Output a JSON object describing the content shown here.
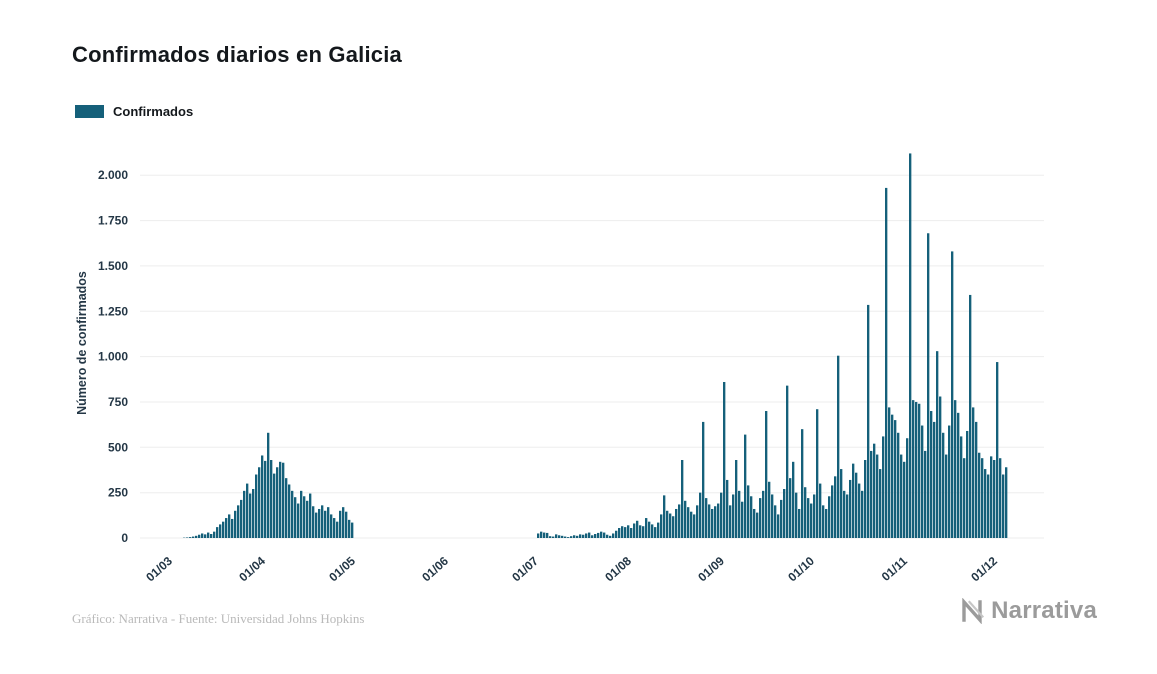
{
  "header": {
    "title": "Confirmados diarios en Galicia"
  },
  "legend": {
    "items": [
      {
        "label": "Confirmados",
        "color": "#15607a"
      }
    ]
  },
  "footer": {
    "credit": "Gráfico: Narrativa - Fuente: Universidad Johns Hopkins",
    "logo_text": "Narrativa"
  },
  "chart_data": {
    "type": "bar",
    "title": "Confirmados diarios en Galicia",
    "xlabel": "",
    "ylabel": "Número de confirmados",
    "series_name": "Confirmados",
    "bar_color": "#15607a",
    "grid": true,
    "legend_position": "top-left",
    "frequency": "daily",
    "x_start_date": "01/03/2020",
    "x_end_date": "05/12/2020",
    "ylim": [
      0,
      2150
    ],
    "y_ticks": [
      {
        "value": 0,
        "label": "0"
      },
      {
        "value": 250,
        "label": "250"
      },
      {
        "value": 500,
        "label": "500"
      },
      {
        "value": 750,
        "label": "750"
      },
      {
        "value": 1000,
        "label": "1.000"
      },
      {
        "value": 1250,
        "label": "1.250"
      },
      {
        "value": 1500,
        "label": "1.500"
      },
      {
        "value": 1750,
        "label": "1.750"
      },
      {
        "value": 2000,
        "label": "2.000"
      }
    ],
    "x_ticks": [
      {
        "index": 0,
        "label": "01/03"
      },
      {
        "index": 31,
        "label": "01/04"
      },
      {
        "index": 61,
        "label": "01/05"
      },
      {
        "index": 92,
        "label": "01/06"
      },
      {
        "index": 122,
        "label": "01/07"
      },
      {
        "index": 153,
        "label": "01/08"
      },
      {
        "index": 184,
        "label": "01/09"
      },
      {
        "index": 214,
        "label": "01/10"
      },
      {
        "index": 245,
        "label": "01/11"
      },
      {
        "index": 275,
        "label": "01/12"
      }
    ],
    "months": [
      {
        "month": "03/2020",
        "values": [
          0,
          0,
          0,
          0,
          0,
          2,
          3,
          5,
          8,
          12,
          18,
          25,
          20,
          30,
          22,
          35,
          60,
          75,
          90,
          110,
          130,
          105,
          150,
          180,
          210,
          260,
          300,
          245,
          270,
          350,
          390
        ]
      },
      {
        "month": "04/2020",
        "values": [
          455,
          425,
          580,
          430,
          355,
          390,
          420,
          415,
          330,
          295,
          260,
          225,
          190,
          260,
          230,
          205,
          245,
          175,
          140,
          160,
          180,
          150,
          170,
          130,
          110,
          90,
          150,
          170,
          145,
          100
        ]
      },
      {
        "month": "05/2020",
        "values": [
          85,
          0,
          0,
          0,
          0,
          0,
          0,
          0,
          0,
          0,
          0,
          0,
          0,
          0,
          0,
          0,
          0,
          0,
          0,
          0,
          0,
          0,
          0,
          0,
          0,
          0,
          0,
          0,
          0,
          0,
          0
        ]
      },
      {
        "month": "06/2020",
        "values": [
          0,
          0,
          0,
          0,
          0,
          0,
          0,
          0,
          0,
          0,
          0,
          0,
          0,
          0,
          0,
          0,
          0,
          0,
          0,
          0,
          0,
          0,
          0,
          0,
          0,
          0,
          0,
          0,
          0,
          0
        ]
      },
      {
        "month": "07/2020",
        "values": [
          0,
          25,
          35,
          30,
          28,
          10,
          8,
          20,
          15,
          12,
          8,
          5,
          10,
          15,
          12,
          20,
          18,
          25,
          30,
          15,
          22,
          28,
          35,
          30,
          18,
          12,
          25,
          40,
          55,
          65,
          60
        ]
      },
      {
        "month": "08/2020",
        "values": [
          70,
          55,
          80,
          95,
          70,
          65,
          110,
          90,
          75,
          60,
          85,
          130,
          235,
          150,
          135,
          120,
          160,
          185,
          430,
          205,
          170,
          145,
          130,
          180,
          250,
          640,
          220,
          185,
          160,
          175,
          190
        ]
      },
      {
        "month": "09/2020",
        "values": [
          250,
          860,
          320,
          180,
          240,
          430,
          260,
          200,
          570,
          290,
          230,
          160,
          140,
          220,
          260,
          700,
          310,
          240,
          180,
          130,
          210,
          270,
          840,
          330,
          420,
          250,
          160,
          600,
          280,
          220
        ]
      },
      {
        "month": "10/2020",
        "values": [
          190,
          240,
          710,
          300,
          180,
          160,
          230,
          290,
          340,
          1005,
          380,
          260,
          240,
          320,
          410,
          360,
          300,
          260,
          430,
          1285,
          480,
          520,
          460,
          380,
          560,
          1930,
          720,
          680,
          650,
          580,
          460
        ]
      },
      {
        "month": "11/2020",
        "values": [
          420,
          550,
          2120,
          760,
          750,
          740,
          620,
          480,
          1680,
          700,
          640,
          1030,
          780,
          580,
          460,
          620,
          1580,
          760,
          690,
          560,
          440,
          590,
          1340,
          720,
          640,
          470,
          440,
          380,
          350,
          450
        ]
      },
      {
        "month": "12/2020",
        "values": [
          430,
          970,
          440,
          350,
          390
        ]
      }
    ]
  }
}
